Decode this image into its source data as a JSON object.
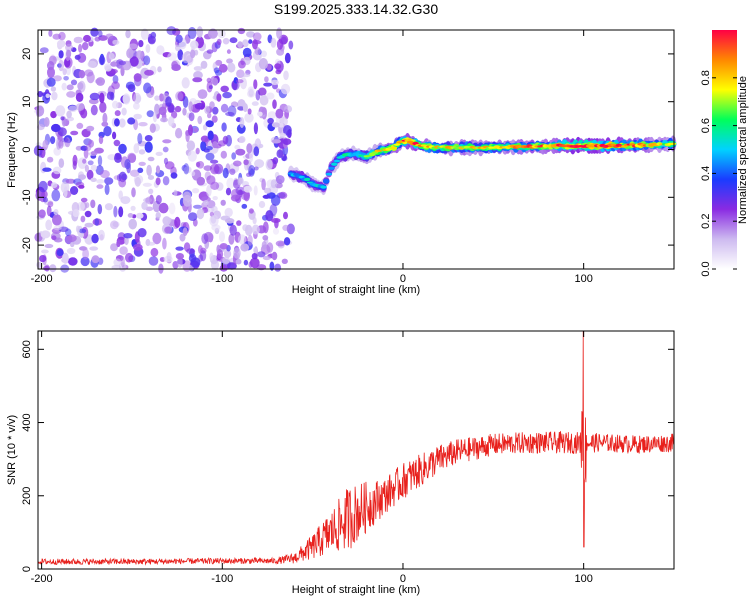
{
  "title": "S199.2025.333.14.32.G30",
  "chart_data": [
    {
      "type": "heatmap",
      "xlabel": "Height of straight line (km)",
      "ylabel": "Frequency (Hz)",
      "xlim": [
        -202,
        150
      ],
      "ylim": [
        -25,
        25
      ],
      "xticks": [
        -200,
        -100,
        0,
        100
      ],
      "yticks": [
        -20,
        -10,
        0,
        10,
        20
      ],
      "colorbar": {
        "label": "Normalized spectral amplitude",
        "range": [
          0,
          1
        ],
        "ticks": [
          0.0,
          0.2,
          0.4,
          0.6,
          0.8
        ],
        "colors": [
          "#ffffff",
          "#cdbaf0",
          "#8a2be2",
          "#1a3cff",
          "#00d2ff",
          "#00ff5a",
          "#ffff00",
          "#ff8800",
          "#ff0044"
        ]
      },
      "noise_region": {
        "x": [
          -202,
          -62
        ],
        "y": [
          -25,
          25
        ],
        "level": 0.18
      },
      "ridge": {
        "x": [
          -62,
          -55,
          -48,
          -44,
          -40,
          -35,
          -30,
          -25,
          -20,
          -15,
          -10,
          -5,
          0,
          5,
          10,
          20,
          40,
          60,
          80,
          90,
          100,
          120,
          140,
          150
        ],
        "freq": [
          -5,
          -6,
          -7.5,
          -8,
          -4,
          -1.5,
          -1,
          -1,
          -1.5,
          -0.5,
          0,
          0.5,
          2,
          1.5,
          0.8,
          0.4,
          0.4,
          0.5,
          0.7,
          0.8,
          0.8,
          0.8,
          1.0,
          1.2
        ],
        "amplitude": [
          0.4,
          0.45,
          0.45,
          0.45,
          0.4,
          0.45,
          0.5,
          0.5,
          0.6,
          0.65,
          0.7,
          0.75,
          0.8,
          0.85,
          0.75,
          0.7,
          0.7,
          0.75,
          0.8,
          0.9,
          0.9,
          0.85,
          0.7,
          0.6
        ]
      }
    },
    {
      "type": "line",
      "xlabel": "Height of straight line (km)",
      "ylabel": "SNR (10 * v/v)",
      "xlim": [
        -202,
        150
      ],
      "ylim": [
        0,
        650
      ],
      "xticks": [
        -200,
        -100,
        0,
        100
      ],
      "yticks": [
        0,
        200,
        400,
        600
      ],
      "series": [
        {
          "name": "SNR",
          "color": "#e8201c",
          "x_envelope": [
            -202,
            -150,
            -100,
            -70,
            -60,
            -50,
            -40,
            -30,
            -20,
            -10,
            0,
            10,
            20,
            30,
            50,
            70,
            90,
            100,
            110,
            130,
            150
          ],
          "mean": [
            20,
            20,
            22,
            22,
            30,
            60,
            100,
            140,
            170,
            200,
            240,
            270,
            300,
            320,
            340,
            345,
            345,
            345,
            345,
            340,
            345
          ],
          "noise_amplitude": [
            8,
            8,
            8,
            8,
            15,
            35,
            60,
            90,
            70,
            50,
            50,
            45,
            40,
            35,
            30,
            30,
            30,
            30,
            25,
            25,
            25
          ],
          "spike": {
            "x": 100,
            "max": 650,
            "min": 60
          }
        }
      ]
    }
  ]
}
